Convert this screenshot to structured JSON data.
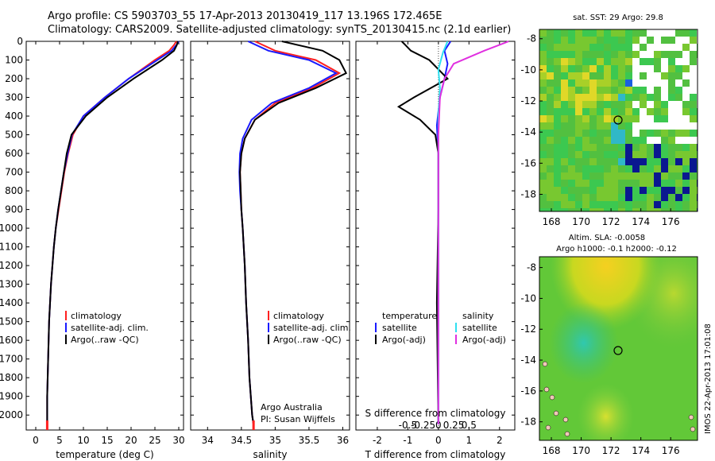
{
  "header": {
    "line1": "Argo profile: CS 5903703_55 17-Apr-2013 20130419_117 13.196S 172.465E",
    "line2": "Climatology: CARS2009. Satellite-adjusted climatology: synTS_20130415.nc (2.1d earlier)"
  },
  "side_stamp": "IMOS 22-Apr-2013 17:01:08",
  "colors": {
    "climatology": "#ff2020",
    "satellite_adj": "#1a1aff",
    "argo": "#000000",
    "sat_salinity": "#30e0f0",
    "argo_salinity_adj": "#e030e0"
  },
  "depth_ticks": [
    "0",
    "100",
    "200",
    "300",
    "400",
    "500",
    "600",
    "700",
    "800",
    "900",
    "1000",
    "1100",
    "1200",
    "1300",
    "1400",
    "1500",
    "1600",
    "1700",
    "1800",
    "1900",
    "2000"
  ],
  "panels": {
    "temperature": {
      "xlabel": "temperature (deg C)",
      "xticks": [
        "0",
        "5",
        "10",
        "15",
        "20",
        "25",
        "30"
      ],
      "legend": [
        "climatology",
        "satellite-adj. clim.",
        "Argo(..raw -QC)"
      ]
    },
    "salinity": {
      "xlabel": "salinity",
      "xticks": [
        "34",
        "34.5",
        "35",
        "35.5",
        "36"
      ],
      "legend": [
        "climatology",
        "satellite-adj. clim.",
        "Argo(..raw -QC)"
      ],
      "note1": "Argo Australia",
      "note2": "PI: Susan Wijffels"
    },
    "difference": {
      "xlabel": "T difference from climatology",
      "xlabel_top": "S difference from climatology",
      "xticks_T": [
        "-2",
        "-1",
        "0",
        "1",
        "2"
      ],
      "xticks_S": [
        "-0.5",
        "-0.25",
        "0",
        "0.25",
        "0.5"
      ],
      "legend_t_title": "temperature",
      "legend_t": [
        "satellite",
        "Argo(-adj)"
      ],
      "legend_s_title": "salinity",
      "legend_s": [
        "satellite",
        "Argo(-adj)"
      ]
    }
  },
  "maps": {
    "sst": {
      "title": "sat. SST: 29 Argo: 29.8",
      "yticks": [
        "-8",
        "-10",
        "-12",
        "-14",
        "-16",
        "-18"
      ],
      "xticks": [
        "168",
        "170",
        "172",
        "174",
        "176"
      ]
    },
    "sla": {
      "title1": "Altim. SLA: -0.0058",
      "title2": "Argo h1000: -0.1 h2000: -0.12",
      "yticks": [
        "-8",
        "-10",
        "-12",
        "-14",
        "-16",
        "-18"
      ],
      "xticks": [
        "168",
        "170",
        "172",
        "174",
        "176"
      ]
    }
  },
  "chart_data": [
    {
      "type": "line",
      "title": "",
      "xlabel": "temperature (deg C)",
      "ylabel": "",
      "xlim": [
        -2,
        31
      ],
      "ylim": [
        2080,
        0
      ],
      "series": [
        {
          "name": "climatology",
          "x": [
            29.5,
            29.0,
            28.0,
            25.0,
            19.5,
            14.5,
            10.0,
            7.8,
            6.8,
            6.0,
            5.4,
            4.8,
            4.2,
            3.8,
            3.5,
            3.2,
            3.0,
            2.8,
            2.7,
            2.6,
            2.5,
            2.4,
            2.4
          ],
          "y": [
            0,
            20,
            50,
            100,
            200,
            300,
            400,
            500,
            600,
            700,
            800,
            900,
            1000,
            1100,
            1200,
            1300,
            1400,
            1500,
            1600,
            1700,
            1800,
            1900,
            2050
          ]
        },
        {
          "name": "satellite-adj. clim.",
          "x": [
            30.0,
            29.5,
            28.5,
            25.5,
            19.5,
            14.5,
            10.0,
            7.6,
            6.7,
            5.9,
            5.3,
            4.7,
            4.2,
            3.8,
            3.5,
            3.2,
            3.0,
            2.8,
            2.7,
            2.6,
            2.5,
            2.4,
            2.4
          ],
          "y": [
            0,
            20,
            50,
            100,
            200,
            300,
            400,
            500,
            600,
            700,
            800,
            900,
            1000,
            1100,
            1200,
            1300,
            1400,
            1500,
            1600,
            1700,
            1800,
            1900,
            2050
          ]
        },
        {
          "name": "Argo(..raw -QC)",
          "x": [
            29.8,
            29.6,
            29.0,
            26.5,
            20.5,
            15.0,
            10.5,
            7.5,
            6.5,
            5.9,
            5.3,
            4.7,
            4.2,
            3.8,
            3.5,
            3.2,
            3.0,
            2.8,
            2.7,
            2.6,
            2.5,
            2.4,
            2.4
          ],
          "y": [
            0,
            20,
            50,
            100,
            200,
            300,
            400,
            500,
            600,
            700,
            800,
            900,
            1000,
            1100,
            1200,
            1300,
            1400,
            1500,
            1600,
            1700,
            1800,
            1900,
            2050
          ]
        }
      ]
    },
    {
      "type": "line",
      "title": "",
      "xlabel": "salinity",
      "ylabel": "",
      "xlim": [
        33.75,
        36.1
      ],
      "ylim": [
        2080,
        0
      ],
      "series": [
        {
          "name": "climatology",
          "x": [
            34.7,
            35.0,
            35.6,
            35.95,
            35.55,
            35.0,
            34.7,
            34.55,
            34.5,
            34.48,
            34.49,
            34.5,
            34.52,
            34.55,
            34.57,
            34.6,
            34.62,
            34.64,
            34.66,
            34.68
          ],
          "y": [
            0,
            50,
            100,
            170,
            250,
            330,
            420,
            520,
            600,
            700,
            800,
            900,
            1000,
            1200,
            1400,
            1600,
            1800,
            1900,
            2000,
            2050
          ]
        },
        {
          "name": "satellite-adj. clim.",
          "x": [
            34.6,
            34.9,
            35.5,
            35.9,
            35.5,
            34.95,
            34.65,
            34.52,
            34.48,
            34.47,
            34.48,
            34.5,
            34.52,
            34.55,
            34.57,
            34.6,
            34.62,
            34.64,
            34.66,
            34.68
          ],
          "y": [
            0,
            50,
            100,
            170,
            250,
            330,
            420,
            520,
            600,
            700,
            800,
            900,
            1000,
            1200,
            1400,
            1600,
            1800,
            1900,
            2000,
            2050
          ]
        },
        {
          "name": "Argo(..raw -QC)",
          "x": [
            35.1,
            35.7,
            35.95,
            36.05,
            35.6,
            35.05,
            34.7,
            34.55,
            34.5,
            34.48,
            34.49,
            34.5,
            34.52,
            34.55,
            34.57,
            34.6,
            34.62,
            34.64,
            34.66,
            34.68
          ],
          "y": [
            0,
            50,
            100,
            170,
            250,
            330,
            420,
            520,
            600,
            700,
            800,
            900,
            1000,
            1200,
            1400,
            1600,
            1800,
            1900,
            2000,
            2050
          ]
        }
      ]
    },
    {
      "type": "line",
      "title": "",
      "xlabel": "T difference from climatology",
      "ylabel": "",
      "xlim": [
        -2.7,
        2.5
      ],
      "ylim": [
        2080,
        0
      ],
      "series": [
        {
          "name": "T satellite",
          "x": [
            0.4,
            0.2,
            0.3,
            0.2,
            0.05,
            -0.05,
            0.0,
            0.0,
            0.0,
            0.0
          ],
          "y": [
            0,
            50,
            120,
            200,
            300,
            450,
            600,
            900,
            1400,
            2050
          ]
        },
        {
          "name": "T Argo(-adj)",
          "x": [
            -1.2,
            -0.9,
            -0.3,
            0.3,
            -0.8,
            -1.3,
            -0.6,
            -0.1,
            0.0,
            0.0,
            -0.05,
            0.0
          ],
          "y": [
            0,
            50,
            100,
            200,
            300,
            350,
            420,
            500,
            600,
            900,
            1400,
            2050
          ]
        },
        {
          "name": "S satellite",
          "x": [
            0.3,
            0.15,
            0.0,
            0.05,
            0.0,
            0.0,
            0.0,
            0.0
          ],
          "y": [
            0,
            60,
            150,
            250,
            400,
            700,
            1400,
            2050
          ]
        },
        {
          "name": "S Argo(-adj)",
          "x": [
            2.3,
            1.5,
            0.5,
            0.2,
            0.05,
            0.0,
            0.0,
            0.0
          ],
          "y": [
            0,
            50,
            120,
            200,
            300,
            500,
            1000,
            2050
          ]
        }
      ]
    }
  ]
}
